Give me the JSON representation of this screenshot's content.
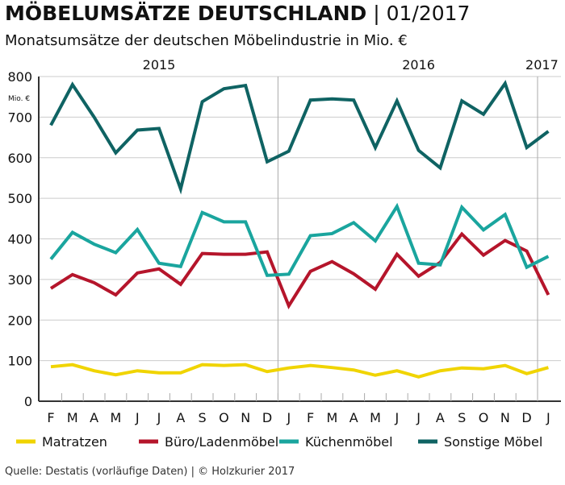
{
  "header": {
    "title_bold": "MÖBELUMSÄTZE DEUTSCHLAND",
    "title_rest": "| 01/2017",
    "subtitle": "Monatsumsätze der deutschen Möbelindustrie in Mio. €"
  },
  "source": "Quelle: Destatis (vorläufige Daten) | © Holzkurier 2017",
  "chart_data": {
    "type": "line",
    "title": "MÖBELUMSÄTZE DEUTSCHLAND | 01/2017",
    "subtitle": "Monatsumsätze der deutschen Möbelindustrie in Mio. €",
    "ylabel": "Mio. €",
    "ylim": [
      0,
      800
    ],
    "yticks": [
      0,
      100,
      200,
      300,
      400,
      500,
      600,
      700,
      800
    ],
    "grid": true,
    "legend": "bottom",
    "year_labels": [
      {
        "label": "2015",
        "at": 5
      },
      {
        "label": "2016",
        "at": 17
      },
      {
        "label": "2017",
        "at": 23
      }
    ],
    "categories": [
      "F",
      "M",
      "A",
      "M",
      "J",
      "J",
      "A",
      "S",
      "O",
      "N",
      "D",
      "J",
      "F",
      "M",
      "A",
      "M",
      "J",
      "J",
      "A",
      "S",
      "O",
      "N",
      "D",
      "J"
    ],
    "series": [
      {
        "name": "Matratzen",
        "color": "#f0d400",
        "values": [
          85,
          90,
          75,
          65,
          75,
          70,
          70,
          90,
          88,
          90,
          73,
          82,
          88,
          83,
          77,
          64,
          75,
          60,
          75,
          82,
          80,
          88,
          68,
          83
        ]
      },
      {
        "name": "Büro/Ladenmöbel",
        "color": "#b5152b",
        "values": [
          278,
          312,
          292,
          262,
          316,
          326,
          288,
          364,
          362,
          362,
          368,
          235,
          320,
          344,
          314,
          276,
          362,
          308,
          342,
          412,
          360,
          396,
          370,
          262
        ]
      },
      {
        "name": "Küchenmöbel",
        "color": "#1aa59e",
        "values": [
          350,
          416,
          387,
          366,
          423,
          340,
          332,
          465,
          442,
          442,
          310,
          313,
          408,
          413,
          440,
          395,
          480,
          340,
          336,
          478,
          422,
          460,
          330,
          357
        ]
      },
      {
        "name": "Sonstige Möbel",
        "color": "#0f6363",
        "values": [
          680,
          780,
          700,
          612,
          668,
          672,
          523,
          738,
          770,
          778,
          590,
          616,
          742,
          745,
          742,
          625,
          740,
          618,
          575,
          740,
          707,
          783,
          625,
          665
        ]
      }
    ]
  }
}
